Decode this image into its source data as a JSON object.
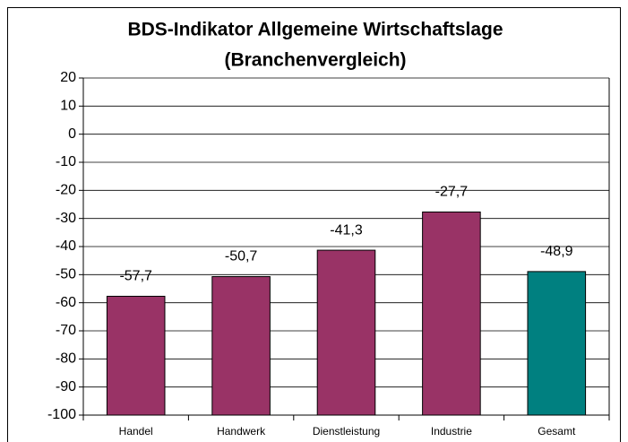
{
  "chart_data": {
    "type": "bar",
    "title": [
      "BDS-Indikator Allgemeine Wirtschaftslage",
      "(Branchenvergleich)"
    ],
    "categories": [
      "Handel",
      "Handwerk",
      "Dienstleistung",
      "Industrie",
      "Gesamt"
    ],
    "values": [
      -57.7,
      -50.7,
      -41.3,
      -27.7,
      -48.9
    ],
    "value_labels": [
      "-57,7",
      "-50,7",
      "-41,3",
      "-27,7",
      "-48,9"
    ],
    "colors": [
      "#993366",
      "#993366",
      "#993366",
      "#993366",
      "#008080"
    ],
    "ylim": [
      -100,
      20
    ],
    "yticks": [
      -100,
      -90,
      -80,
      -70,
      -60,
      -50,
      -40,
      -30,
      -20,
      -10,
      0,
      10,
      20
    ],
    "grid": true
  }
}
